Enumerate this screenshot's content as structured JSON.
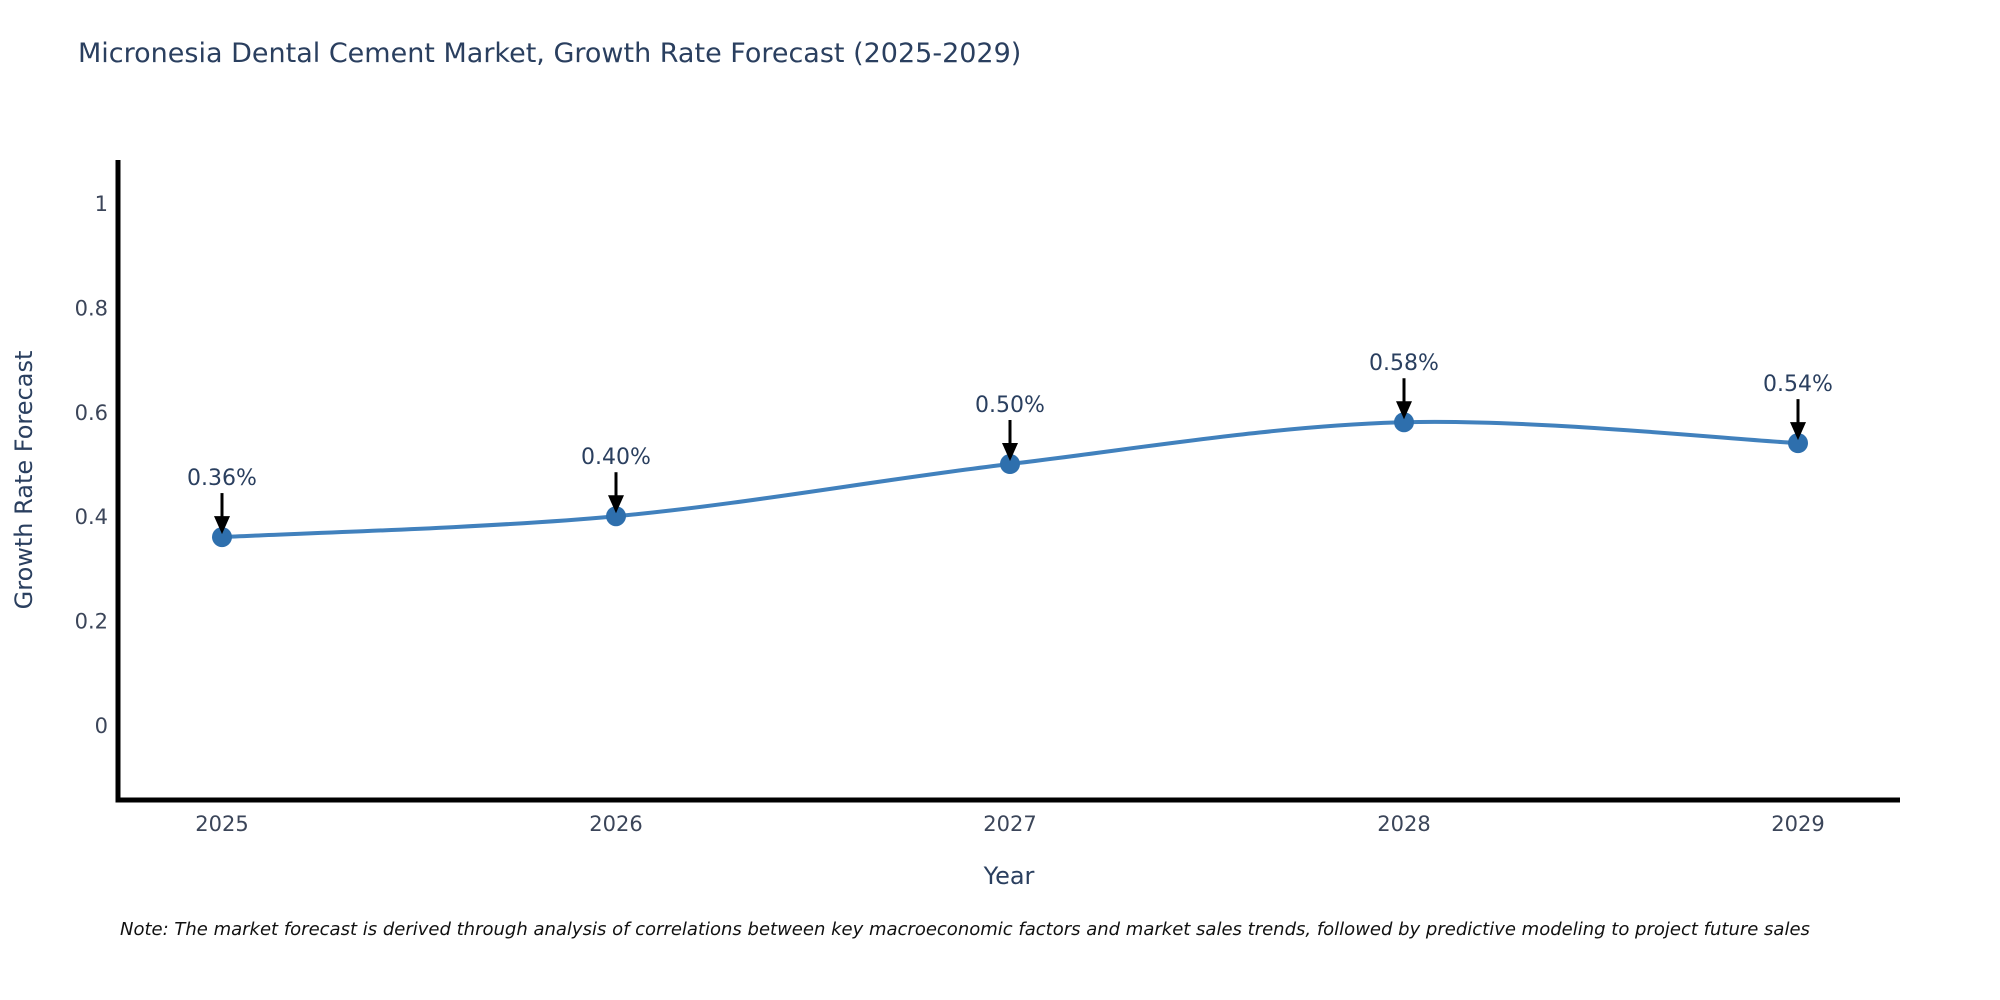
{
  "title": "Micronesia Dental Cement Market, Growth Rate Forecast (2025-2029)",
  "note": "Note: The market forecast is derived through analysis of correlations between key macroeconomic factors and market sales trends, followed by predictive modeling to project future sales",
  "chart_data": {
    "type": "line",
    "title": "Micronesia Dental Cement Market, Growth Rate Forecast (2025-2029)",
    "xlabel": "Year",
    "ylabel": "Growth Rate Forecast",
    "categories": [
      "2025",
      "2026",
      "2027",
      "2028",
      "2029"
    ],
    "values": [
      0.36,
      0.4,
      0.5,
      0.58,
      0.54
    ],
    "point_labels": [
      "0.36%",
      "0.40%",
      "0.50%",
      "0.58%",
      "0.54%"
    ],
    "yticks": [
      "0",
      "0.2",
      "0.4",
      "0.6",
      "0.8",
      "1"
    ],
    "ytick_values": [
      0,
      0.2,
      0.4,
      0.6,
      0.8,
      1
    ],
    "ylim": [
      -0.14,
      1.08
    ],
    "line_shape": "spline",
    "grid": false,
    "legend_position": "none",
    "annotations_have_arrows": true
  },
  "colors": {
    "line": "#4181bd",
    "marker": "#2e6fad",
    "axis": "#000000",
    "text": "#2a3f5f",
    "tick_text": "#3b4559",
    "arrow": "#000000",
    "note_text": "#111111",
    "background": "#ffffff"
  }
}
